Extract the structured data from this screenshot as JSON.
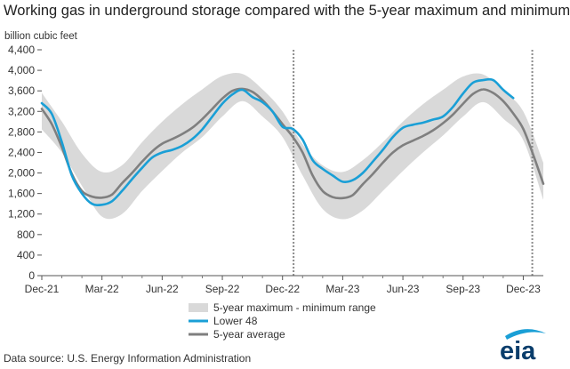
{
  "chart_data": {
    "type": "area",
    "title": "Working gas in underground  storage compared with the 5-year maximum and minimum",
    "ylabel": "billion cubic feet",
    "xlabel": "",
    "ylim": [
      0,
      4400
    ],
    "yticks": [
      0,
      400,
      800,
      1200,
      1600,
      2000,
      2400,
      2800,
      3200,
      3600,
      4000,
      4400
    ],
    "ytick_labels": [
      "0",
      "400",
      "800",
      "1,200",
      "1,600",
      "2,000",
      "2,400",
      "2,800",
      "3,200",
      "3,600",
      "4,000",
      "4,400"
    ],
    "xlim": [
      0,
      25
    ],
    "xticks": [
      0,
      3,
      6,
      9,
      12,
      15,
      18,
      21,
      24
    ],
    "xtick_labels": [
      "Dec-21",
      "Mar-22",
      "Jun-22",
      "Sep-22",
      "Dec-22",
      "Mar-23",
      "Jun-23",
      "Sep-23",
      "Dec-23"
    ],
    "x_unit": "months since Dec-21",
    "reference_lines": [
      12.55,
      24.45
    ],
    "grid": false,
    "legend_position": "bottom-center",
    "series": [
      {
        "name": "5-year maximum - minimum range",
        "kind": "band",
        "color": "#d9d9d9",
        "x": [
          0,
          1,
          2,
          3,
          4,
          5,
          6,
          7,
          8,
          9,
          10,
          11,
          12,
          13,
          14,
          15,
          16,
          17,
          18,
          19,
          20,
          21,
          22,
          23,
          24,
          25
        ],
        "upper": [
          3560,
          3000,
          2380,
          2020,
          2150,
          2600,
          3000,
          3340,
          3630,
          3890,
          3930,
          3630,
          3200,
          2560,
          2150,
          2020,
          2250,
          2600,
          3000,
          3340,
          3620,
          3880,
          3920,
          3600,
          3200,
          2200
        ],
        "lower": [
          2850,
          2400,
          1750,
          1150,
          1200,
          1650,
          2040,
          2400,
          2700,
          3100,
          3400,
          3100,
          2700,
          1950,
          1300,
          1100,
          1270,
          1650,
          2040,
          2400,
          2730,
          3100,
          3380,
          3060,
          2640,
          1480
        ]
      },
      {
        "name": "Lower 48",
        "kind": "line",
        "color": "#1a9fd6",
        "x": [
          0,
          0.5,
          1,
          1.5,
          2,
          2.5,
          3,
          3.5,
          4,
          4.5,
          5,
          5.5,
          6,
          6.5,
          7,
          7.5,
          8,
          8.5,
          9,
          9.5,
          10,
          10.5,
          11,
          11.5,
          12,
          12.5,
          13,
          13.5,
          14,
          14.5,
          15,
          15.5,
          16,
          16.5,
          17,
          17.5,
          18,
          18.5,
          19,
          19.5,
          20,
          20.5,
          21,
          21.5,
          22,
          22.5,
          23,
          23.5
        ],
        "y": [
          3360,
          3150,
          2600,
          1950,
          1600,
          1400,
          1380,
          1450,
          1650,
          1880,
          2100,
          2300,
          2400,
          2450,
          2530,
          2660,
          2850,
          3100,
          3350,
          3530,
          3620,
          3480,
          3380,
          3200,
          2900,
          2860,
          2650,
          2250,
          2080,
          1950,
          1830,
          1860,
          2000,
          2220,
          2450,
          2700,
          2880,
          2940,
          2980,
          3040,
          3100,
          3290,
          3550,
          3760,
          3810,
          3810,
          3620,
          3460
        ]
      },
      {
        "name": "5-year average",
        "kind": "line",
        "color": "#7f7f7f",
        "x": [
          0,
          0.5,
          1,
          1.5,
          2,
          2.5,
          3,
          3.5,
          4,
          4.5,
          5,
          5.5,
          6,
          6.5,
          7,
          7.5,
          8,
          8.5,
          9,
          9.5,
          10,
          10.5,
          11,
          11.5,
          12,
          12.5,
          13,
          13.5,
          14,
          14.5,
          15,
          15.5,
          16,
          16.5,
          17,
          17.5,
          18,
          18.5,
          19,
          19.5,
          20,
          20.5,
          21,
          21.5,
          22,
          22.5,
          23,
          23.5,
          24,
          24.5,
          25
        ],
        "y": [
          3250,
          2950,
          2500,
          1980,
          1650,
          1540,
          1520,
          1580,
          1800,
          2000,
          2220,
          2420,
          2570,
          2660,
          2760,
          2880,
          3050,
          3250,
          3450,
          3600,
          3640,
          3580,
          3420,
          3200,
          2950,
          2710,
          2400,
          1950,
          1650,
          1530,
          1510,
          1570,
          1780,
          1980,
          2200,
          2400,
          2540,
          2630,
          2720,
          2830,
          2970,
          3140,
          3350,
          3540,
          3630,
          3560,
          3400,
          3160,
          2860,
          2350,
          1790
        ]
      }
    ]
  },
  "source_note": "Data source:  U.S. Energy Information Administration",
  "logo": {
    "text": "eia",
    "icon": "eia-logo-icon",
    "text_color": "#0a3d6b",
    "accent_color": "#1a9fd6"
  }
}
